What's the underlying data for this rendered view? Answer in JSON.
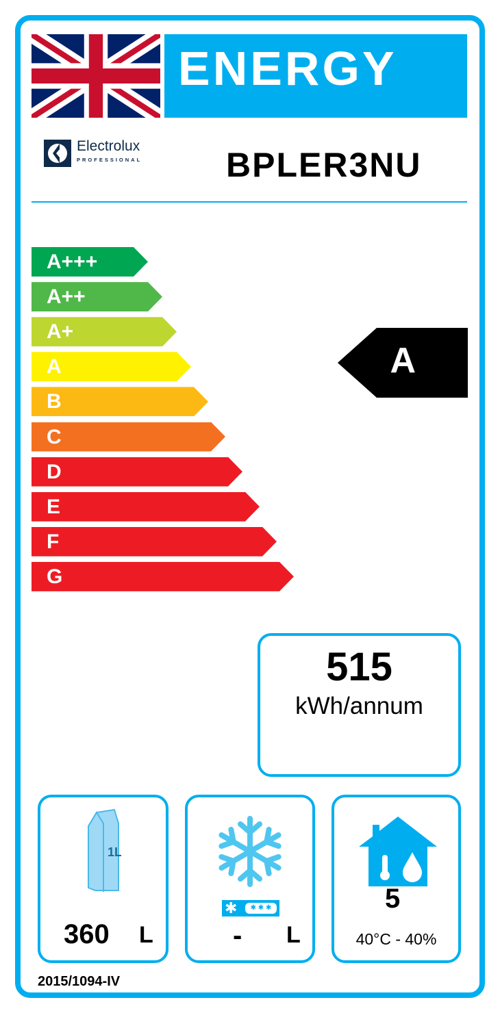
{
  "header": {
    "title": "ENERGY",
    "flag": "uk-flag-icon"
  },
  "brand": {
    "name": "Electrolux",
    "sub": "PROFESSIONAL"
  },
  "model": "BPLER3NU",
  "scale": [
    {
      "label": "A+++",
      "color": "#00a651"
    },
    {
      "label": "A++",
      "color": "#50b848"
    },
    {
      "label": "A+",
      "color": "#bed630"
    },
    {
      "label": "A",
      "color": "#fff200"
    },
    {
      "label": "B",
      "color": "#fdb913"
    },
    {
      "label": "C",
      "color": "#f37021"
    },
    {
      "label": "D",
      "color": "#ed1c24"
    },
    {
      "label": "E",
      "color": "#ed1c24"
    },
    {
      "label": "F",
      "color": "#ed1c24"
    },
    {
      "label": "G",
      "color": "#ed1c24"
    }
  ],
  "rating": "A",
  "consumption": {
    "value": "515",
    "unit": "kWh/annum"
  },
  "chilled": {
    "icon_text": "1L",
    "value": "360",
    "unit": "L"
  },
  "frozen": {
    "value": "-",
    "unit": "L"
  },
  "climate": {
    "class": "5",
    "range": "40°C - 40%"
  },
  "regulation": "2015/1094-IV",
  "colors": {
    "accent": "#00aeef"
  }
}
